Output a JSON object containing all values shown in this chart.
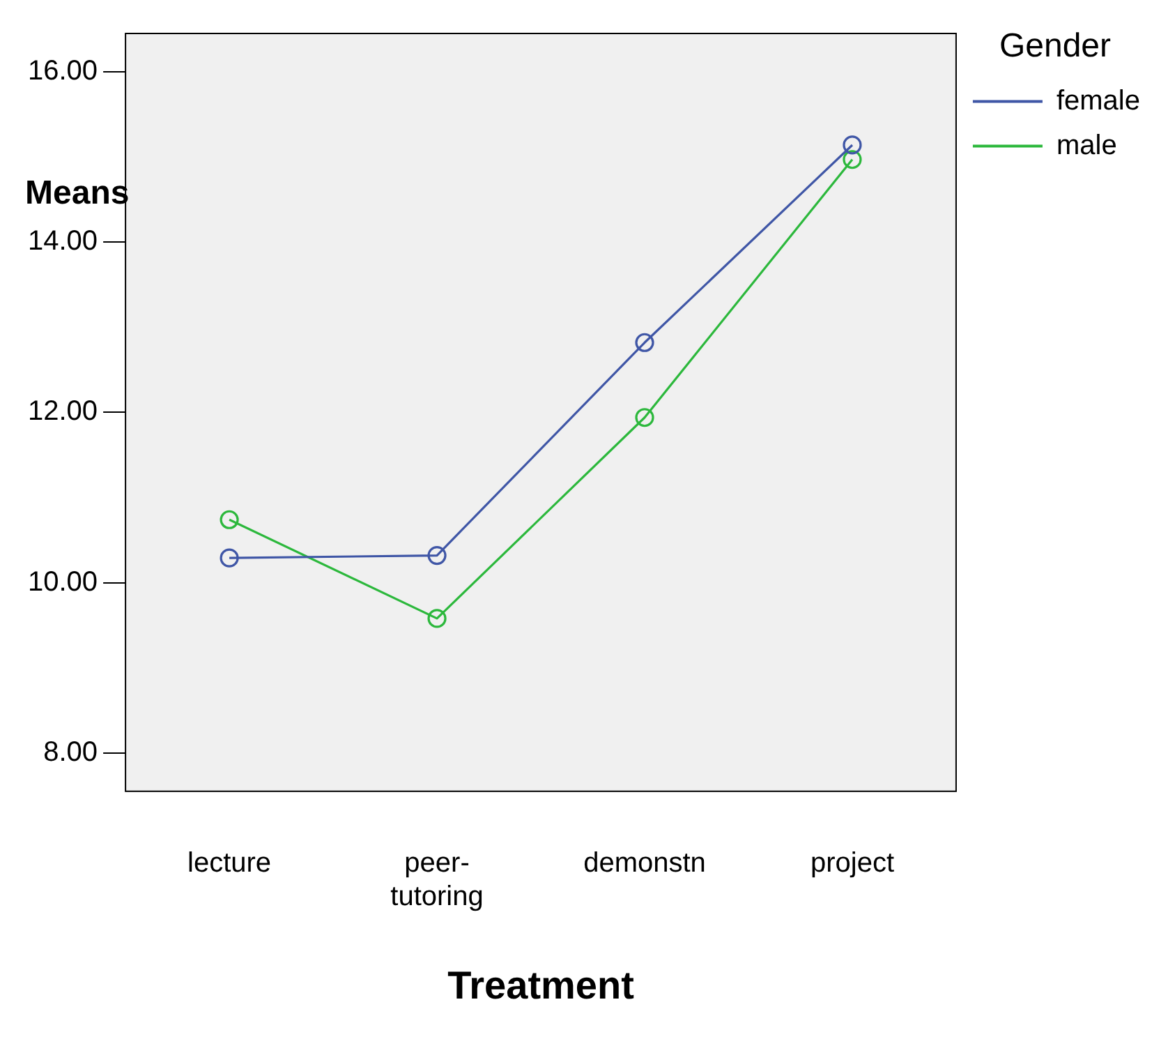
{
  "chart_data": {
    "type": "line",
    "xlabel": "Treatment",
    "ylabel": "Means",
    "legend_title": "Gender",
    "categories": [
      "lecture",
      "peer-tutoring",
      "demonstn",
      "project"
    ],
    "series": [
      {
        "name": "female",
        "color": "#3f56a6",
        "values": [
          10.29,
          10.32,
          12.82,
          15.14
        ]
      },
      {
        "name": "male",
        "color": "#2cb83c",
        "values": [
          10.74,
          9.58,
          11.94,
          14.97
        ]
      }
    ],
    "ylim": [
      7.55,
      16.45
    ],
    "yticks": [
      {
        "value": 8,
        "label": "8.00"
      },
      {
        "value": 10,
        "label": "10.00"
      },
      {
        "value": 12,
        "label": "12.00"
      },
      {
        "value": 14,
        "label": "14.00"
      },
      {
        "value": 16,
        "label": "16.00"
      }
    ],
    "grid": false,
    "legend": "top right",
    "marker": "circle",
    "line_style": "solid"
  }
}
